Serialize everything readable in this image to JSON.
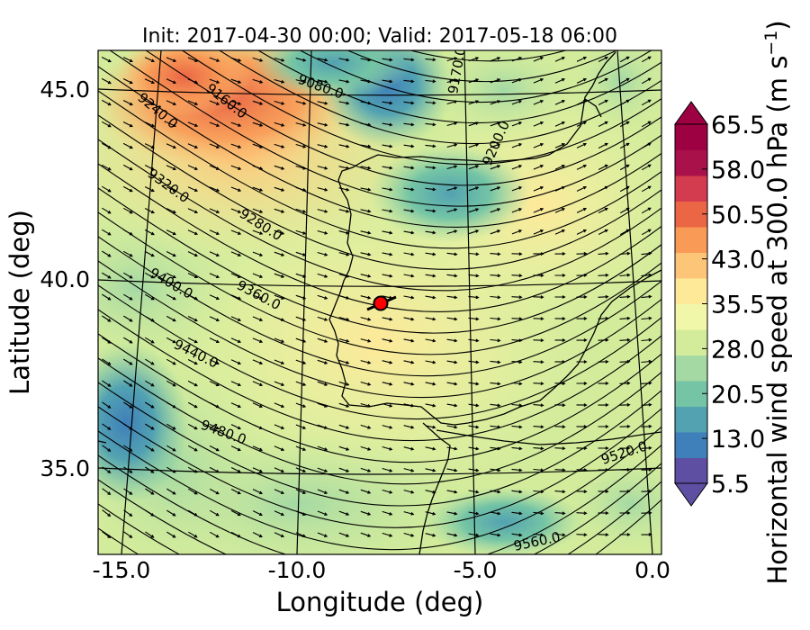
{
  "chart_data": {
    "type": "heatmap",
    "title": "Init: 2017-04-30 00:00; Valid: 2017-05-18 06:00",
    "xlabel": "Longitude (deg)",
    "ylabel": "Latitude (deg)",
    "xlim": [
      -16.0,
      0.3
    ],
    "ylim": [
      32.8,
      46.0
    ],
    "x_ticks": [
      "-15.0",
      "-10.0",
      "-5.0",
      "0.0"
    ],
    "x_tick_values": [
      -15,
      -10,
      -5,
      0
    ],
    "y_ticks": [
      "45.0",
      "40.0",
      "35.0"
    ],
    "y_tick_values": [
      45,
      40,
      35
    ],
    "colorbar": {
      "label": "Horizontal wind speed at 300.0 hPa",
      "units": "(m s",
      "units_exp": "−1",
      "units_close": ")",
      "range": [
        5.5,
        65.5
      ],
      "extend": "both",
      "tick_labels": [
        "65.5",
        "58.0",
        "50.5",
        "43.0",
        "35.5",
        "28.0",
        "20.5",
        "13.0",
        "5.5"
      ],
      "tick_values": [
        65.5,
        58.0,
        50.5,
        43.0,
        35.5,
        28.0,
        20.5,
        13.0,
        5.5
      ],
      "colors": [
        "#5e4fa2",
        "#3f7fba",
        "#52a2b2",
        "#74c4a5",
        "#a4d9a4",
        "#d3ec9c",
        "#f1f7a8",
        "#fee999",
        "#fdc578",
        "#f99a56",
        "#ea6645",
        "#d33c4e",
        "#a9114b",
        "#9e0142"
      ]
    },
    "contour_labels": [
      "9080.0",
      "9170.0",
      "9160.0",
      "9240.0",
      "9200.0",
      "9320.0",
      "9280.0",
      "9400.0",
      "9360.0",
      "9440.0",
      "9480.0",
      "9520.0",
      "9560.0"
    ],
    "marker": {
      "lon": -7.7,
      "lat": 39.3,
      "color": "#ff0000"
    }
  }
}
